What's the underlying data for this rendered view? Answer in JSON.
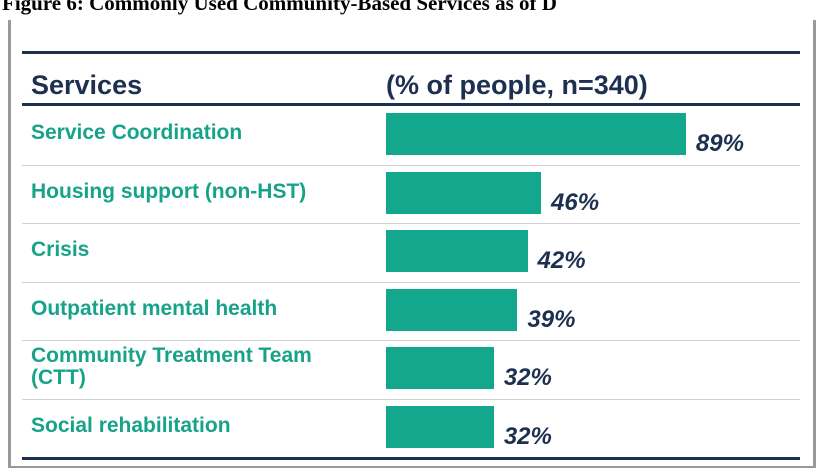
{
  "figure_title": "Figure 6: Commonly Used Community-Based Services as of D",
  "chart_data": {
    "type": "bar",
    "orientation": "horizontal",
    "category_header": "Services",
    "value_header": "(% of people, n=340)",
    "categories": [
      "Service Coordination",
      "Housing support (non-HST)",
      "Crisis",
      "Outpatient mental health",
      "Community Treatment Team (CTT)",
      "Social rehabilitation"
    ],
    "values": [
      89,
      46,
      42,
      39,
      32,
      32
    ],
    "value_labels": [
      "89%",
      "46%",
      "42%",
      "39%",
      "32%",
      "32%"
    ],
    "color": "#13a88e",
    "xlim": [
      0,
      100
    ]
  }
}
